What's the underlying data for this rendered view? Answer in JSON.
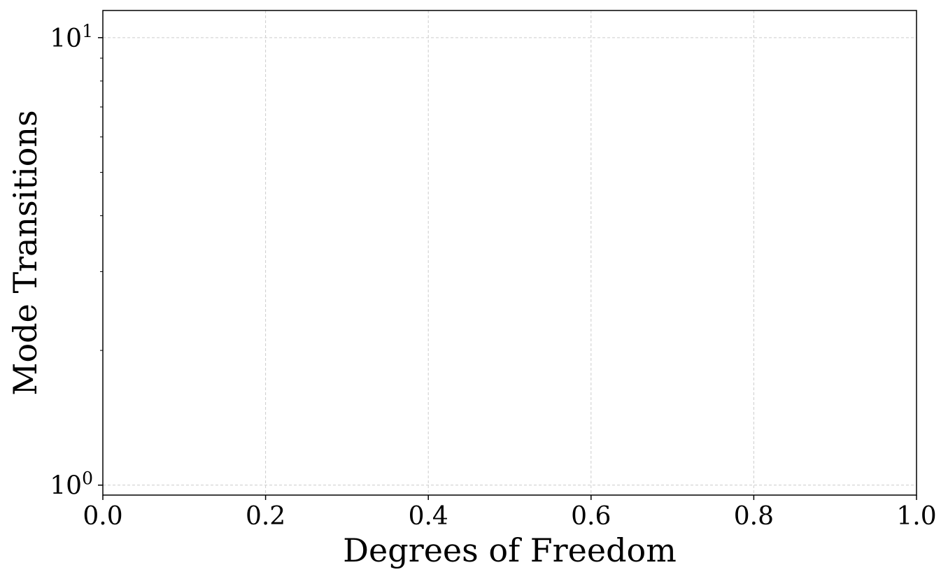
{
  "chart_data": {
    "type": "line",
    "title": "",
    "xlabel": "Degrees of Freedom",
    "ylabel": "Mode Transitions",
    "xlim": [
      0.0,
      1.0
    ],
    "ylim": [
      0.95,
      11.5
    ],
    "yscale": "log",
    "x_ticks": [
      "0.0",
      "0.2",
      "0.4",
      "0.6",
      "0.8",
      "1.0"
    ],
    "y_ticks": [
      {
        "base": "10",
        "exp": "0",
        "value": 1
      },
      {
        "base": "10",
        "exp": "1",
        "value": 10
      }
    ],
    "grid": true,
    "series": []
  }
}
